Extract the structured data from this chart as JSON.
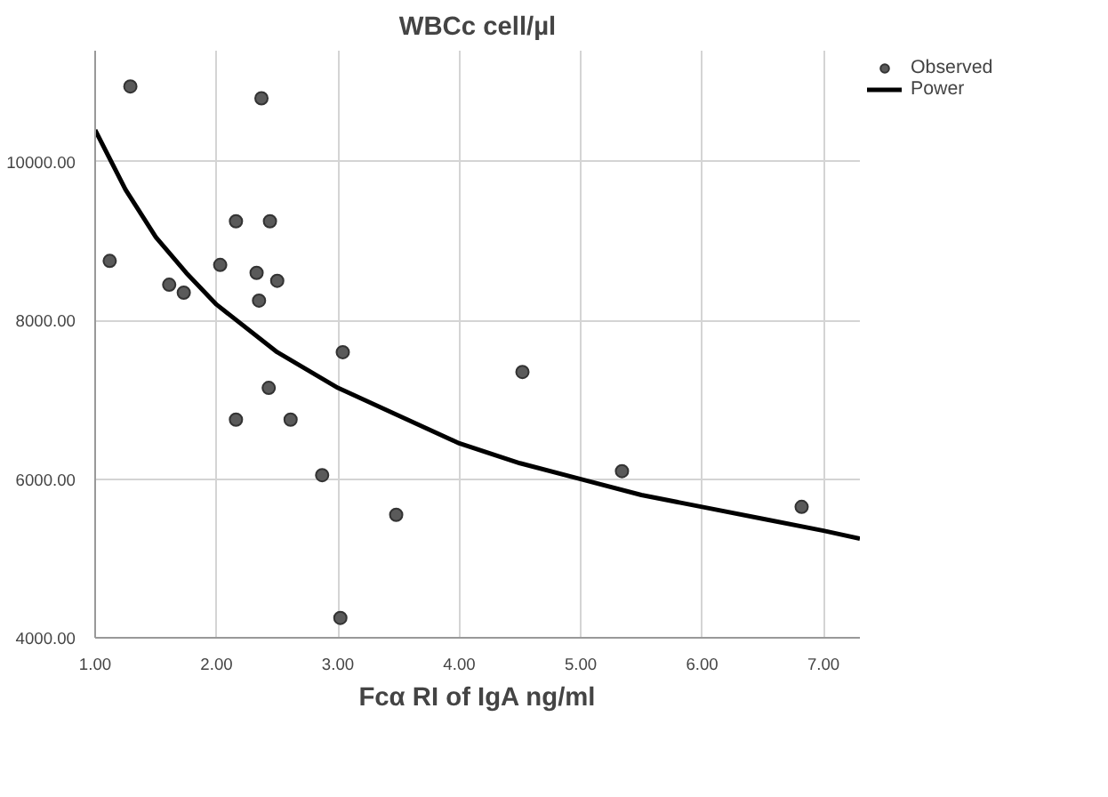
{
  "chart_data": {
    "type": "scatter",
    "title": "WBCc cell/µl",
    "xlabel": "Fcα RI of IgA ng/ml",
    "xlim": [
      1.0,
      7.3
    ],
    "ylim": [
      4000,
      11400
    ],
    "xticks": [
      {
        "value": 1,
        "label": "1.00"
      },
      {
        "value": 2,
        "label": "2.00"
      },
      {
        "value": 3,
        "label": "3.00"
      },
      {
        "value": 4,
        "label": "4.00"
      },
      {
        "value": 5,
        "label": "5.00"
      },
      {
        "value": 6,
        "label": "6.00"
      },
      {
        "value": 7,
        "label": "7.00"
      }
    ],
    "yticks": [
      {
        "value": 4000,
        "label": "4000.00"
      },
      {
        "value": 6000,
        "label": "6000.00"
      },
      {
        "value": 8000,
        "label": "8000.00"
      },
      {
        "value": 10000,
        "label": "10000.00"
      }
    ],
    "grid": true,
    "legend": "top right",
    "marker": "circle",
    "series": [
      {
        "name": "Observed",
        "color": "#5a5a5a",
        "x": [
          1.29,
          2.37,
          1.12,
          2.16,
          2.44,
          2.03,
          2.33,
          2.5,
          1.61,
          1.73,
          2.35,
          3.04,
          2.43,
          2.16,
          2.61,
          2.87,
          3.48,
          3.02,
          4.52,
          5.34,
          6.82
        ],
        "values": [
          10950,
          10800,
          8750,
          9250,
          9250,
          8700,
          8600,
          8500,
          8450,
          8350,
          8250,
          7600,
          7150,
          6750,
          6750,
          6050,
          5550,
          4250,
          7350,
          6100,
          5650
        ]
      },
      {
        "name": "Power",
        "type": "line",
        "color": "#000000",
        "marker": "none",
        "line_style": "solid",
        "x": [
          1.0,
          1.25,
          1.5,
          1.75,
          2.0,
          2.5,
          3.0,
          3.5,
          4.0,
          4.5,
          5.0,
          5.5,
          6.0,
          6.5,
          7.0,
          7.3
        ],
        "values": [
          10400,
          9650,
          9050,
          8600,
          8200,
          7600,
          7150,
          6800,
          6450,
          6200,
          6000,
          5800,
          5650,
          5500,
          5350,
          5250
        ]
      }
    ]
  }
}
